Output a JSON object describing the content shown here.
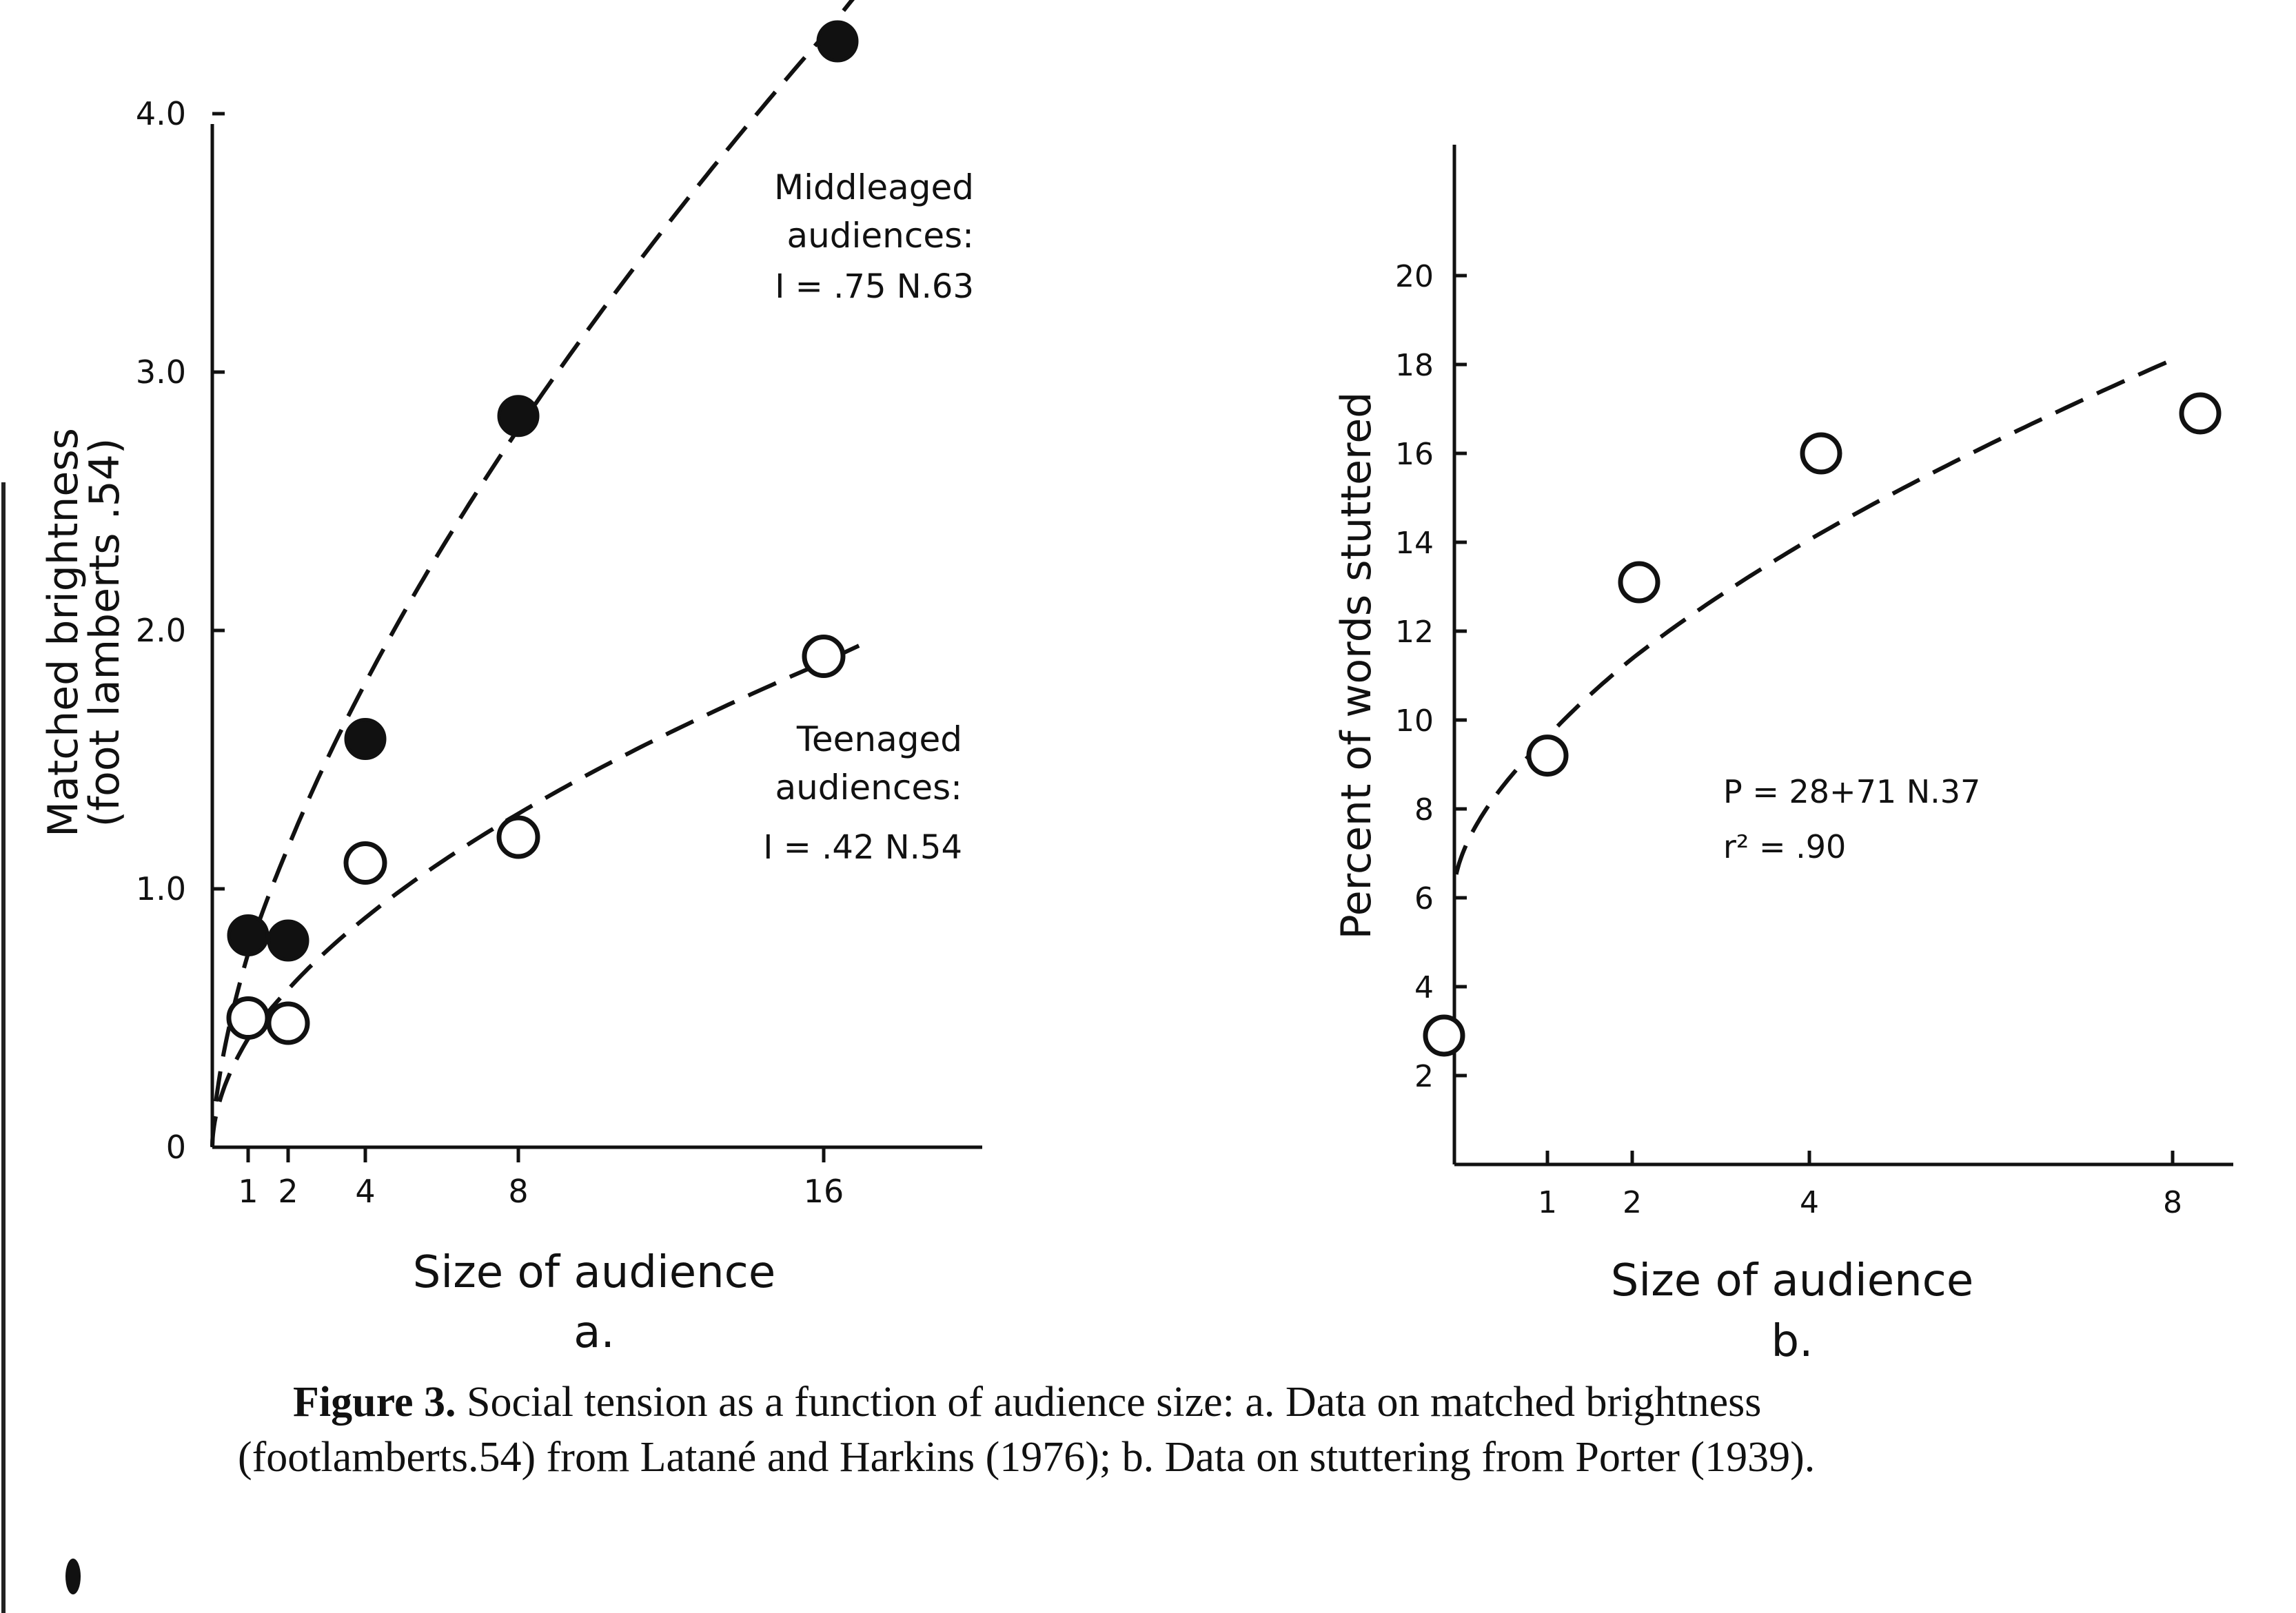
{
  "caption": {
    "lead": "Figure 3.",
    "text": "Social tension as a function of audience size: a. Data on matched brightness (footlamberts.54) from Latané and Harkins (1976); b. Data on stuttering from Porter (1939)."
  },
  "chart_data": [
    {
      "panel": "a.",
      "type": "scatter",
      "xlabel": "Size of audience",
      "ylabel": "Matched brightness",
      "ylabel2": "(foot lamberts .54)",
      "xticks": [
        "1",
        "2",
        "4",
        "8",
        "16"
      ],
      "yticks": [
        "0",
        "1.0",
        "2.0",
        "3.0",
        "4.0"
      ],
      "ylim": [
        0,
        4.0
      ],
      "series": [
        {
          "name": "Middleaged audiences:",
          "formula": "I = .75 N.63",
          "marker": "filled",
          "x": [
            1,
            2,
            4,
            8,
            16
          ],
          "y": [
            0.82,
            0.8,
            1.58,
            2.83,
            4.28
          ]
        },
        {
          "name": "Teenaged audiences:",
          "formula": "I = .42 N.54",
          "marker": "open",
          "x": [
            1,
            2,
            4,
            8,
            16
          ],
          "y": [
            0.5,
            0.48,
            1.1,
            1.2,
            1.9
          ]
        }
      ]
    },
    {
      "panel": "b.",
      "type": "scatter",
      "xlabel": "Size of audience",
      "ylabel": "Percent of words stuttered",
      "xticks": [
        "1",
        "2",
        "4",
        "8"
      ],
      "yticks": [
        "2",
        "4",
        "6",
        "8",
        "10",
        "12",
        "14",
        "16",
        "18",
        "20"
      ],
      "ylim": [
        0,
        22
      ],
      "formula": "P = 28+71 N.37",
      "r2": "r² = .90",
      "series": [
        {
          "marker": "open",
          "x": [
            0,
            1,
            2,
            4,
            8
          ],
          "y": [
            2.9,
            9.2,
            13.1,
            16.0,
            16.9
          ]
        }
      ]
    }
  ]
}
